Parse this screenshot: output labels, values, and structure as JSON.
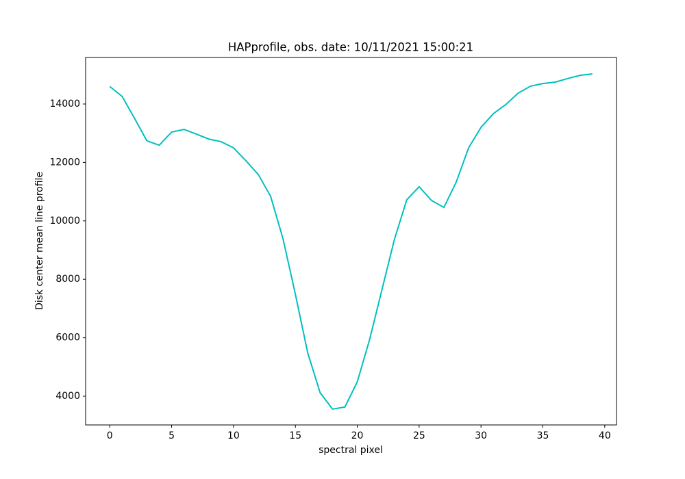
{
  "chart_data": {
    "type": "line",
    "title": "HAPprofile, obs. date: 10/11/2021 15:00:21",
    "x_label": "spectral pixel",
    "y_label": "Disk center mean line profile",
    "x": [
      0,
      1,
      2,
      3,
      4,
      5,
      6,
      7,
      8,
      9,
      10,
      11,
      12,
      13,
      14,
      15,
      16,
      17,
      18,
      19,
      20,
      21,
      22,
      23,
      24,
      25,
      26,
      27,
      28,
      29,
      30,
      31,
      32,
      33,
      34,
      35,
      36,
      37,
      38,
      39
    ],
    "series": [
      {
        "color": "#00bfbf",
        "values": [
          14600,
          14260,
          13510,
          12740,
          12590,
          13040,
          13130,
          12970,
          12800,
          12710,
          12500,
          12060,
          11590,
          10840,
          9390,
          7490,
          5480,
          4120,
          3560,
          3630,
          4490,
          5940,
          7650,
          9360,
          10720,
          11170,
          10700,
          10460,
          11330,
          12500,
          13200,
          13670,
          13980,
          14370,
          14610,
          14700,
          14750,
          14870,
          14980,
          15030
        ]
      }
    ],
    "xlim": [
      -1.95,
      40.95
    ],
    "xticks": [
      0,
      5,
      10,
      15,
      20,
      25,
      30,
      35,
      40
    ],
    "ylim": [
      3017,
      15592
    ],
    "yticks": [
      4000,
      6000,
      8000,
      10000,
      12000,
      14000
    ]
  }
}
